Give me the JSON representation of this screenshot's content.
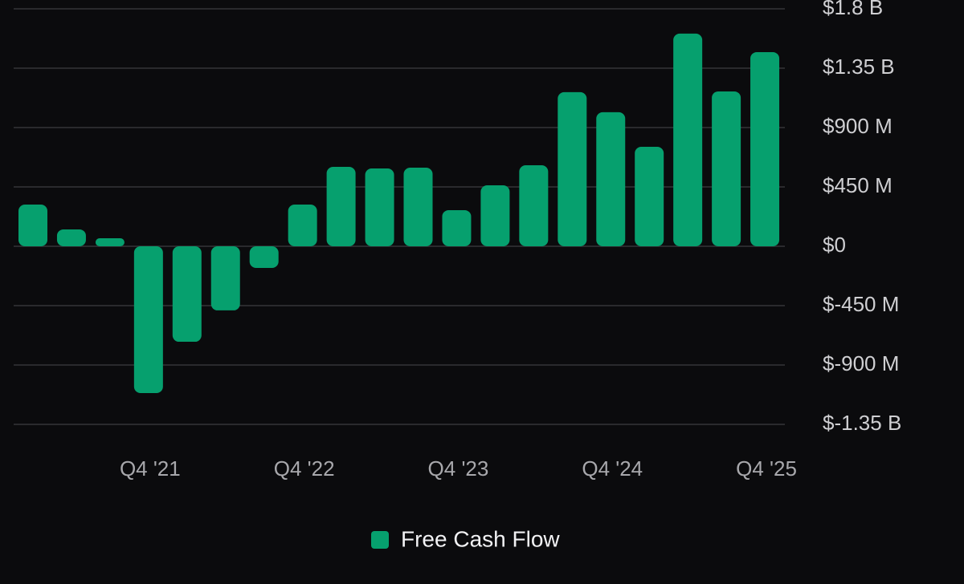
{
  "chart_data": {
    "type": "bar",
    "categories": [
      null,
      null,
      null,
      "Q4 '21",
      null,
      null,
      null,
      "Q4 '22",
      null,
      null,
      null,
      "Q4 '23",
      null,
      null,
      null,
      "Q4 '24",
      null,
      null,
      null,
      "Q4 '25"
    ],
    "series": [
      {
        "name": "Free Cash Flow",
        "color": "#06a06e",
        "values": [
          316000000,
          128000000,
          61000000,
          -1113000000,
          -724000000,
          -486000000,
          -164000000,
          316000000,
          602000000,
          590000000,
          596000000,
          274000000,
          462000000,
          614000000,
          1168000000,
          1016000000,
          754000000,
          1612000000,
          1174000000,
          1472000000
        ]
      }
    ],
    "ylim": [
      -1350000000,
      1800000000
    ],
    "yticks": [
      {
        "value": 1800000000,
        "label": "$1.8 B"
      },
      {
        "value": 1350000000,
        "label": "$1.35 B"
      },
      {
        "value": 900000000,
        "label": "$900 M"
      },
      {
        "value": 450000000,
        "label": "$450 M"
      },
      {
        "value": 0,
        "label": "$0"
      },
      {
        "value": -450000000,
        "label": "$-450 M"
      },
      {
        "value": -900000000,
        "label": "$-900 M"
      },
      {
        "value": -1350000000,
        "label": "$-1.35 B"
      }
    ],
    "grid": true,
    "legend": "bottom"
  }
}
